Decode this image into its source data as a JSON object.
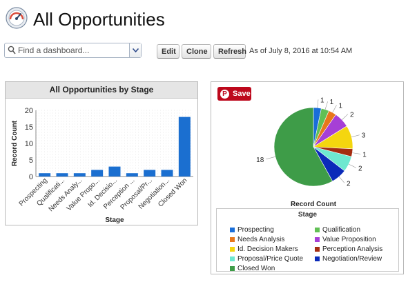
{
  "header": {
    "title": "All Opportunities"
  },
  "toolbar": {
    "search_placeholder": "Find a dashboard...",
    "edit_label": "Edit",
    "clone_label": "Clone",
    "refresh_label": "Refresh",
    "as_of": "As of July 8, 2016 at 10:54 AM"
  },
  "left_panel": {
    "title": "All Opportunities by Stage"
  },
  "right_panel": {
    "save_label": "Save",
    "legend_title": "Stage"
  },
  "colors": {
    "bar": "#1b6fd0",
    "pinterest": "#bd081c"
  },
  "chart_data": [
    {
      "type": "bar",
      "categories": [
        "Prospecting",
        "Qualificati...",
        "Needs Analy...",
        "Value Propo...",
        "Id. Decisio...",
        "Perception ...",
        "Proposal/Pr...",
        "Negotiation...",
        "Closed Won"
      ],
      "values": [
        1,
        1,
        1,
        2,
        3,
        1,
        2,
        2,
        18
      ],
      "xlabel": "Stage",
      "ylabel": "Record Count",
      "ylim": [
        0,
        20
      ],
      "yticks": [
        0,
        5,
        10,
        15,
        20
      ],
      "grid": true
    },
    {
      "type": "pie",
      "xlabel": "Record Count",
      "labels": [
        "Prospecting",
        "Qualification",
        "Needs Analysis",
        "Value Proposition",
        "Id. Decision Makers",
        "Perception Analysis",
        "Proposal/Price Quote",
        "Negotiation/Review",
        "Closed Won"
      ],
      "values": [
        1,
        1,
        1,
        2,
        3,
        1,
        2,
        2,
        18
      ],
      "colors": [
        "#1a6ed8",
        "#61c055",
        "#e8771b",
        "#a63fd6",
        "#f4d60f",
        "#a42c10",
        "#6ee8d0",
        "#0b2ab9",
        "#3e9c48"
      ],
      "legend_position": "bottom"
    }
  ]
}
